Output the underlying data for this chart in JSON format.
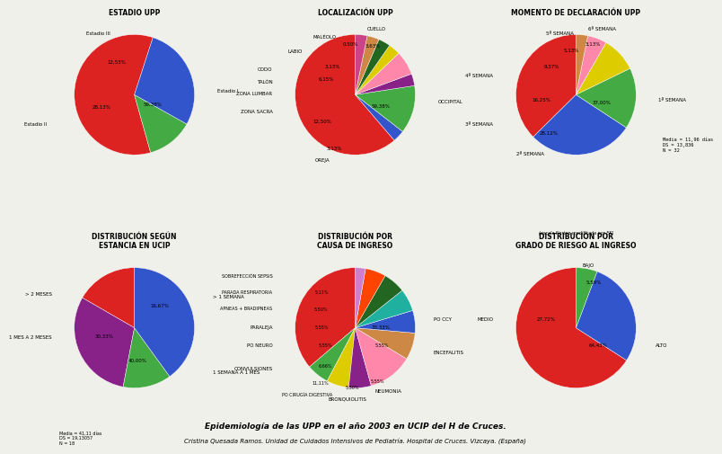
{
  "background_color": "#f0f0ea",
  "title_text": "Epidemiología de las UPP en el año 2003 en UCIP del H de Cruces.",
  "subtitle_text": "Cristina Quesada Ramos. Unidad de Cuidados Intensivos de Pediatría. Hospital de Cruces. Vizcaya. (España)",
  "chart1": {
    "title": "ESTADIO UPP",
    "labels": [
      "Estadio I",
      "Estadio III",
      "Estadio II"
    ],
    "values": [
      59.38,
      12.53,
      28.13
    ],
    "colors": [
      "#dd2222",
      "#44aa44",
      "#3355cc"
    ],
    "startangle": 72
  },
  "chart2": {
    "title": "LOCALIZACIÓN UPP",
    "labels": [
      "OCCIPITAL",
      "OREJA",
      "ZONA SACRA",
      "ZONA LUMBAR",
      "TALÓN",
      "CODO",
      "LABIO",
      "MALÉOLO",
      "CUELLO"
    ],
    "values": [
      59.38,
      3.13,
      12.5,
      3.13,
      6.25,
      3.13,
      3.13,
      3.13,
      3.13
    ],
    "colors": [
      "#dd2222",
      "#3355cc",
      "#44aa44",
      "#882288",
      "#ff88aa",
      "#ddcc00",
      "#226622",
      "#cc8844",
      "#cc4488"
    ],
    "startangle": 90
  },
  "chart3": {
    "title": "MOMENTO DE DECLARACIÓN UPP",
    "labels": [
      "1ª SEMANA",
      "2ª SEMANA",
      "3ª SEMANA",
      "4ª SEMANA",
      "5ª SEMANA",
      "6ª SEMANA"
    ],
    "values": [
      37.0,
      28.12,
      16.25,
      9.37,
      5.13,
      3.13
    ],
    "colors": [
      "#dd2222",
      "#3355cc",
      "#44aa44",
      "#ddcc00",
      "#ff88aa",
      "#cc8844"
    ],
    "note": "Media = 11,96 días\nDS = 13,836\nN = 32",
    "startangle": 90
  },
  "chart4": {
    "title": "DISTRIBUCIÓN SEGÚN\nESTANCIA EN UCIP",
    "labels": [
      "> 1 SEMANA",
      "1 MES A 2 MESES",
      "> 2 MESES",
      "1 SEMANA A 1 MES"
    ],
    "values": [
      16.67,
      30.33,
      13.0,
      40.0
    ],
    "colors": [
      "#dd2222",
      "#882288",
      "#44aa44",
      "#3355cc"
    ],
    "note": "Media = 41,11 días\nDS = 19,13057\nN = 18",
    "startangle": 90
  },
  "chart5": {
    "title": "DISTRIBUCIÓN POR\nCAUSA DE INGRESO",
    "labels": [
      "PO CCY",
      "ENCEFALITIS",
      "NEUMONIA",
      "BRONQUIOLITIS",
      "PO CIRUGÍA DIGESTIVA",
      "CONVULSIONES",
      "PO NEURO",
      "PARALEJA",
      "APNEAS + BRADIPNEAS",
      "PARADA RESPIRATORIA",
      "SOBREFECCIÓN SEPSIS"
    ],
    "values": [
      33.33,
      5.55,
      5.5,
      5.55,
      11.11,
      6.66,
      5.55,
      5.55,
      5.5,
      5.11,
      2.55
    ],
    "colors": [
      "#dd2222",
      "#44aa44",
      "#ddcc00",
      "#882288",
      "#ff88aa",
      "#cc8844",
      "#3355cc",
      "#20b0a0",
      "#226622",
      "#ff4400",
      "#cc80cc"
    ],
    "startangle": 90
  },
  "chart6": {
    "title": "DISTRIBUCIÓN POR\nGRADO DE RIESGO AL INGRESO",
    "subtitle": "(escala Norton modificada por EK)",
    "labels": [
      "ALTO",
      "MEDIO",
      "BAJO"
    ],
    "values": [
      64.43,
      27.72,
      5.59
    ],
    "colors": [
      "#dd2222",
      "#3355cc",
      "#44aa44"
    ],
    "startangle": 90
  }
}
